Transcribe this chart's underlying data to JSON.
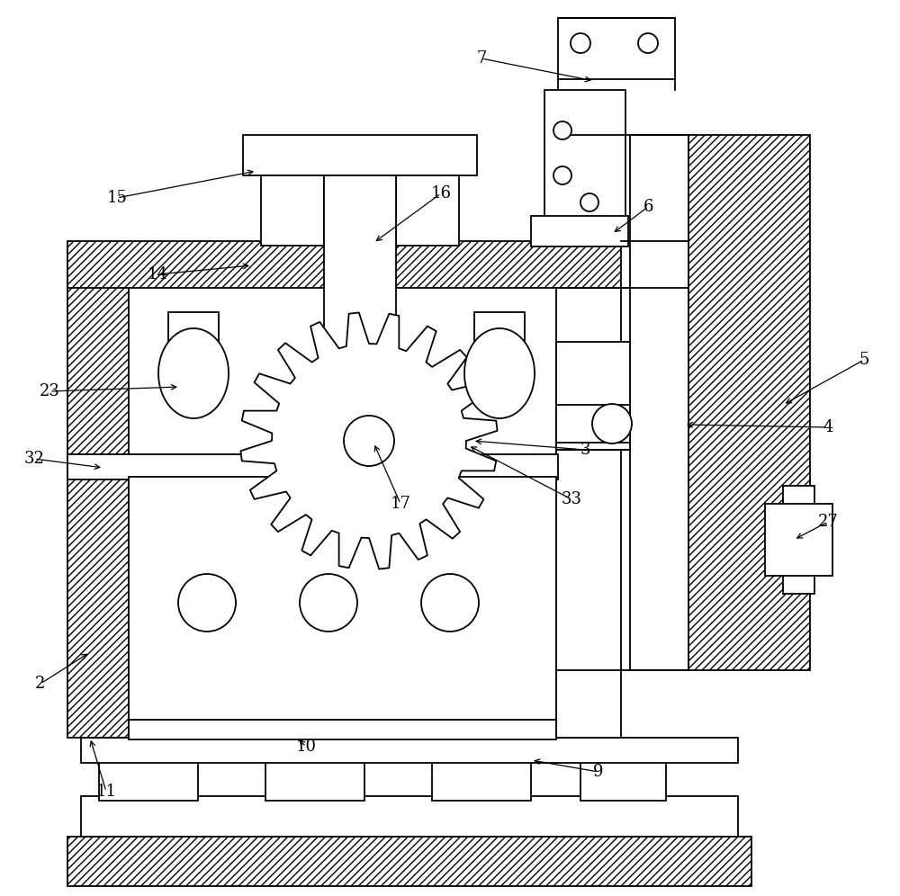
{
  "bg_color": "#ffffff",
  "line_color": "#000000",
  "figsize": [
    10.0,
    9.96
  ],
  "lw": 1.3,
  "hatch": "////",
  "label_fs": 13
}
